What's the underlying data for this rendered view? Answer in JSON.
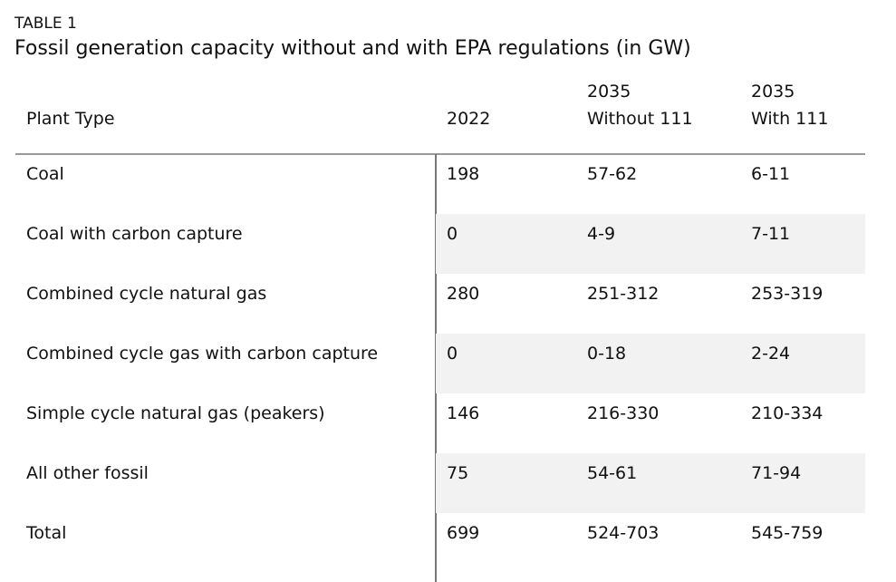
{
  "header": {
    "label": "TABLE 1",
    "title": "Fossil generation capacity without and with EPA regulations (in GW)"
  },
  "table": {
    "columns": [
      [
        "Plant Type"
      ],
      [
        "2022"
      ],
      [
        "2035",
        "Without 111"
      ],
      [
        "2035",
        "With 111"
      ]
    ],
    "rows": [
      [
        "Coal",
        "198",
        "57-62",
        "6-11"
      ],
      [
        "Coal with carbon capture",
        "0",
        "4-9",
        "7-11"
      ],
      [
        "Combined cycle natural gas",
        "280",
        "251-312",
        "253-319"
      ],
      [
        "Combined cycle gas with carbon capture",
        "0",
        "0-18",
        "2-24"
      ],
      [
        "Simple cycle natural gas (peakers)",
        "146",
        "216-330",
        "210-334"
      ],
      [
        "All other fossil",
        "75",
        "54-61",
        "71-94"
      ],
      [
        "Total",
        "699",
        "524-703",
        "545-759"
      ]
    ]
  }
}
